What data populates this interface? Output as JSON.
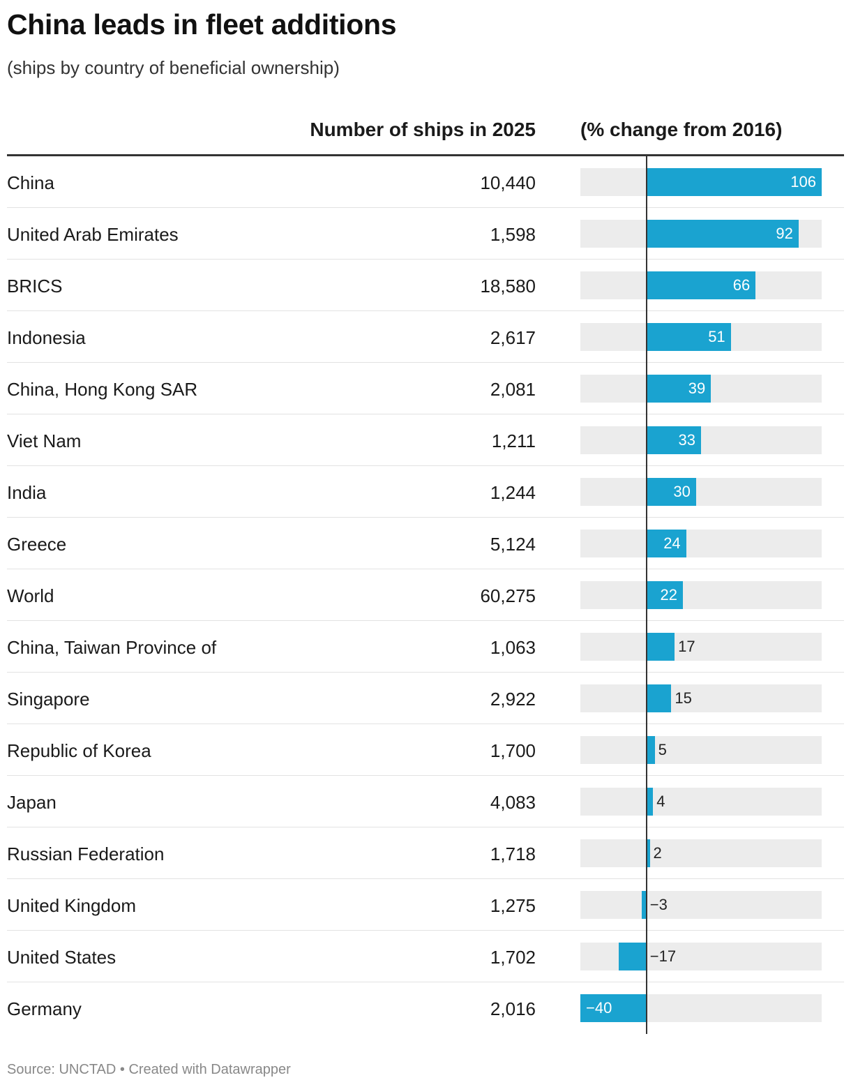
{
  "title": "China leads in fleet additions",
  "subtitle": "(ships by country of beneficial ownership)",
  "columns": {
    "number": "Number of ships in 2025",
    "change": "(% change from 2016)"
  },
  "source": "Source: UNCTAD • Created with Datawrapper",
  "colors": {
    "bar": "#1aa3d0",
    "bar_background": "#ececec",
    "rule": "#333333"
  },
  "chart_data": {
    "type": "table",
    "rows": [
      {
        "country": "China",
        "ships": "10,440",
        "change": 106,
        "change_label": "106"
      },
      {
        "country": "United Arab Emirates",
        "ships": "1,598",
        "change": 92,
        "change_label": "92"
      },
      {
        "country": "BRICS",
        "ships": "18,580",
        "change": 66,
        "change_label": "66"
      },
      {
        "country": "Indonesia",
        "ships": "2,617",
        "change": 51,
        "change_label": "51"
      },
      {
        "country": "China, Hong Kong SAR",
        "ships": "2,081",
        "change": 39,
        "change_label": "39"
      },
      {
        "country": "Viet Nam",
        "ships": "1,211",
        "change": 33,
        "change_label": "33"
      },
      {
        "country": "India",
        "ships": "1,244",
        "change": 30,
        "change_label": "30"
      },
      {
        "country": "Greece",
        "ships": "5,124",
        "change": 24,
        "change_label": "24"
      },
      {
        "country": "World",
        "ships": "60,275",
        "change": 22,
        "change_label": "22"
      },
      {
        "country": "China, Taiwan Province of",
        "ships": "1,063",
        "change": 17,
        "change_label": "17"
      },
      {
        "country": "Singapore",
        "ships": "2,922",
        "change": 15,
        "change_label": "15"
      },
      {
        "country": "Republic of Korea",
        "ships": "1,700",
        "change": 5,
        "change_label": "5"
      },
      {
        "country": "Japan",
        "ships": "4,083",
        "change": 4,
        "change_label": "4"
      },
      {
        "country": "Russian Federation",
        "ships": "1,718",
        "change": 2,
        "change_label": "2"
      },
      {
        "country": "United Kingdom",
        "ships": "1,275",
        "change": -3,
        "change_label": "−3"
      },
      {
        "country": "United States",
        "ships": "1,702",
        "change": -17,
        "change_label": "−17"
      },
      {
        "country": "Germany",
        "ships": "2,016",
        "change": -40,
        "change_label": "−40"
      }
    ],
    "change_range": [
      -40,
      106
    ]
  }
}
